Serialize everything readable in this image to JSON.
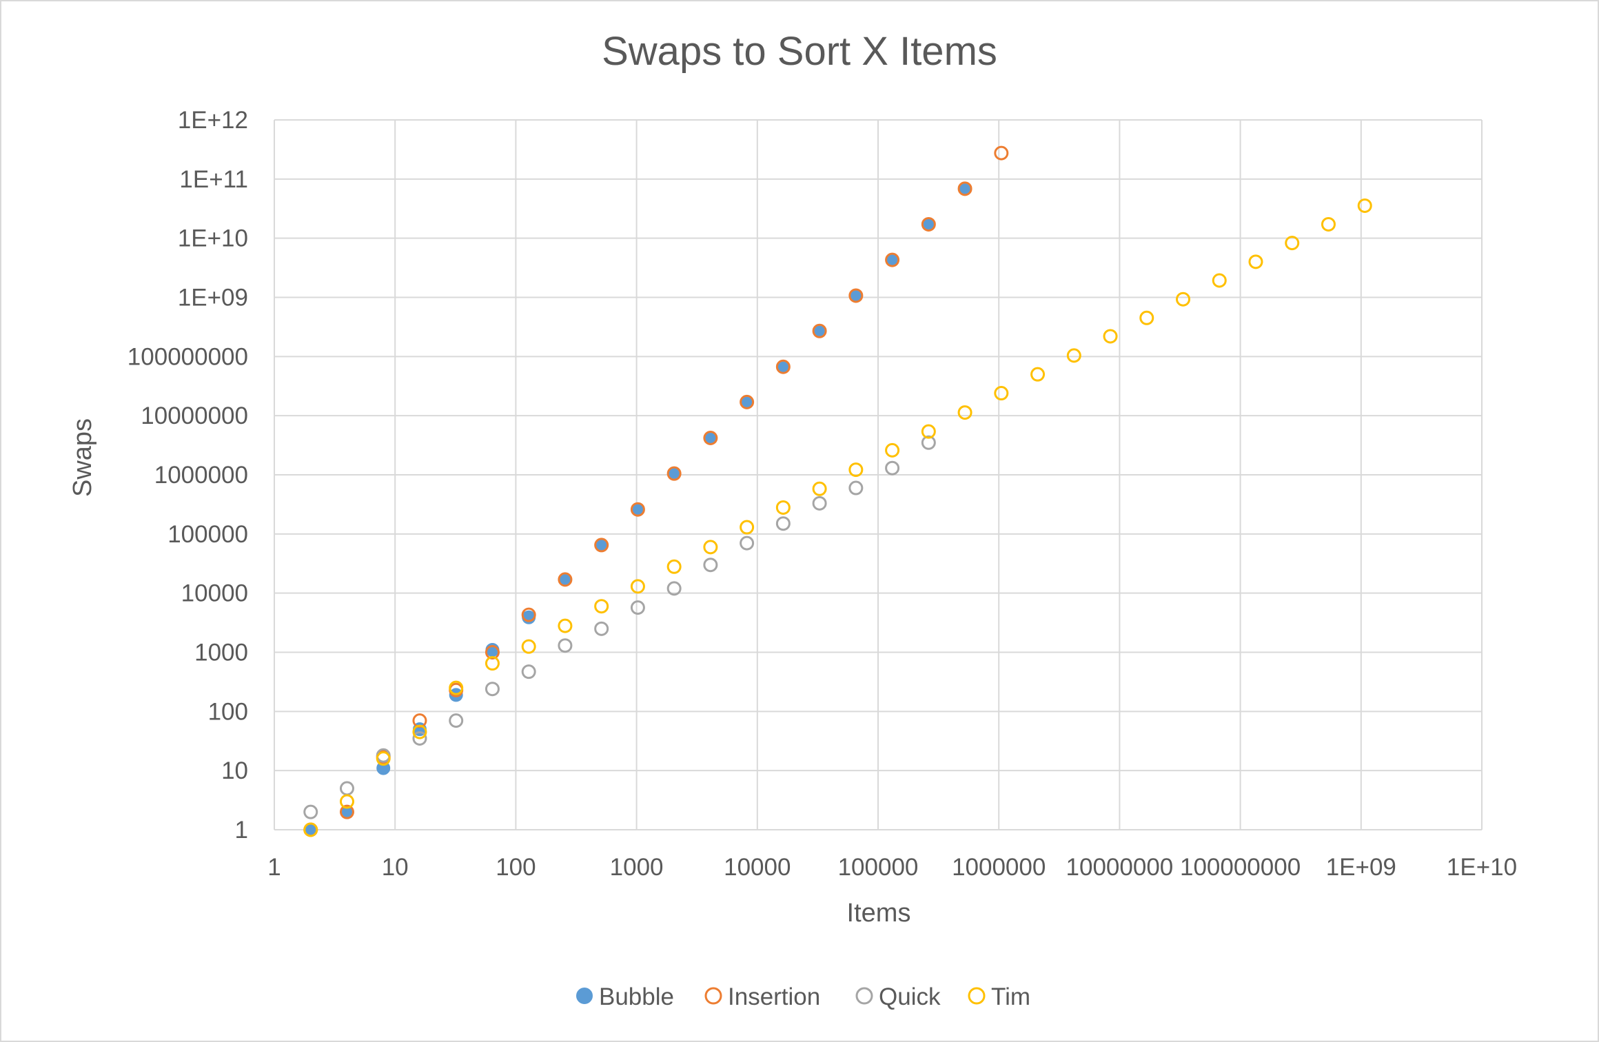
{
  "chart_data": {
    "type": "scatter",
    "title": "Swaps to Sort X Items",
    "xlabel": "Items",
    "ylabel": "Swaps",
    "xscale": "log10",
    "yscale": "log10",
    "xlim": [
      1,
      10000000000
    ],
    "ylim": [
      1,
      1000000000000
    ],
    "grid": true,
    "legend_position": "bottom",
    "x_tick_labels": [
      "1",
      "10",
      "100",
      "1000",
      "10000",
      "100000",
      "1000000",
      "10000000",
      "100000000",
      "1E+09",
      "1E+10"
    ],
    "y_tick_labels": [
      "1",
      "10",
      "100",
      "1000",
      "10000",
      "100000",
      "1000000",
      "10000000",
      "100000000",
      "1E+09",
      "1E+10",
      "1E+11",
      "1E+12"
    ],
    "series": [
      {
        "name": "Bubble",
        "marker": "filled",
        "color": "#5b9bd5",
        "points": [
          [
            2,
            1
          ],
          [
            4,
            2
          ],
          [
            8,
            11
          ],
          [
            16,
            50
          ],
          [
            32,
            190
          ],
          [
            64,
            1100
          ],
          [
            128,
            3900
          ],
          [
            256,
            17000
          ],
          [
            512,
            65000
          ],
          [
            1024,
            260000
          ],
          [
            2048,
            1050000
          ],
          [
            4096,
            4200000
          ],
          [
            8192,
            17000000
          ],
          [
            16384,
            67000000
          ],
          [
            32768,
            270000000
          ],
          [
            65536,
            1070000000
          ],
          [
            131072,
            4300000000
          ],
          [
            262144,
            17200000000
          ],
          [
            524288,
            68700000000
          ]
        ]
      },
      {
        "name": "Insertion",
        "marker": "hollow",
        "color": "#ed7d31",
        "points": [
          [
            2,
            1
          ],
          [
            4,
            2
          ],
          [
            8,
            17
          ],
          [
            16,
            70
          ],
          [
            32,
            230
          ],
          [
            64,
            1000
          ],
          [
            128,
            4300
          ],
          [
            256,
            17000
          ],
          [
            512,
            65000
          ],
          [
            1024,
            260000
          ],
          [
            2048,
            1050000
          ],
          [
            4096,
            4200000
          ],
          [
            8192,
            17000000
          ],
          [
            16384,
            67000000
          ],
          [
            32768,
            270000000
          ],
          [
            65536,
            1070000000
          ],
          [
            131072,
            4300000000
          ],
          [
            262144,
            17200000000
          ],
          [
            524288,
            68700000000
          ],
          [
            1048576,
            275000000000
          ]
        ]
      },
      {
        "name": "Quick",
        "marker": "hollow",
        "color": "#a5a5a5",
        "points": [
          [
            2,
            2
          ],
          [
            4,
            5
          ],
          [
            8,
            18
          ],
          [
            16,
            35
          ],
          [
            32,
            70
          ],
          [
            64,
            240
          ],
          [
            128,
            470
          ],
          [
            256,
            1300
          ],
          [
            512,
            2500
          ],
          [
            1024,
            5700
          ],
          [
            2048,
            12000
          ],
          [
            4096,
            30000
          ],
          [
            8192,
            70000
          ],
          [
            16384,
            150000
          ],
          [
            32768,
            330000
          ],
          [
            65536,
            600000
          ],
          [
            131072,
            1300000
          ],
          [
            262144,
            3500000
          ]
        ]
      },
      {
        "name": "Tim",
        "marker": "hollow",
        "color": "#ffc000",
        "points": [
          [
            2,
            1
          ],
          [
            4,
            3
          ],
          [
            8,
            16
          ],
          [
            16,
            45
          ],
          [
            32,
            250
          ],
          [
            64,
            650
          ],
          [
            128,
            1250
          ],
          [
            256,
            2800
          ],
          [
            512,
            6000
          ],
          [
            1024,
            13000
          ],
          [
            2048,
            28000
          ],
          [
            4096,
            60000
          ],
          [
            8192,
            130000
          ],
          [
            16384,
            280000
          ],
          [
            32768,
            580000
          ],
          [
            65536,
            1220000
          ],
          [
            131072,
            2600000
          ],
          [
            262144,
            5400000
          ],
          [
            524288,
            11300000
          ],
          [
            1048576,
            24000000
          ],
          [
            2097152,
            50000000
          ],
          [
            4194304,
            104000000
          ],
          [
            8388608,
            220000000
          ],
          [
            16777216,
            450000000
          ],
          [
            33554432,
            930000000
          ],
          [
            67108864,
            1930000000
          ],
          [
            134217728,
            4000000000
          ],
          [
            268435456,
            8300000000
          ],
          [
            536870912,
            17200000000
          ],
          [
            1073741824,
            35500000000
          ]
        ]
      }
    ]
  }
}
